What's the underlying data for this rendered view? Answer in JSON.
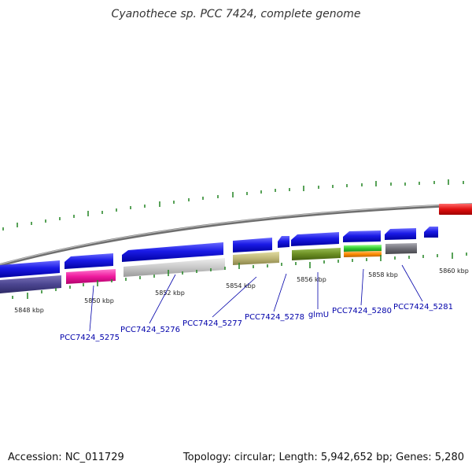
{
  "title": "Cyanothece sp. PCC 7424, complete genome",
  "accession": "Accession: NC_011729",
  "stats": "Topology: circular; Length: 5,942,652 bp; Genes: 5,280",
  "colors": {
    "forward": "#1a1ae6",
    "backbone": "#8a8a8a",
    "tick": "#2e8b2e",
    "label": "#0000aa",
    "red_feature": "#e01010"
  },
  "tick_labels": [
    "5848 kbp",
    "5850 kbp",
    "5852 kbp",
    "5854 kbp",
    "5856 kbp",
    "5858 kbp",
    "5860 kbp"
  ],
  "gene_labels": [
    "PCC7424_5275",
    "PCC7424_5276",
    "PCC7424_5277",
    "PCC7424_5278",
    "glmU",
    "PCC7424_5280",
    "PCC7424_5281"
  ]
}
